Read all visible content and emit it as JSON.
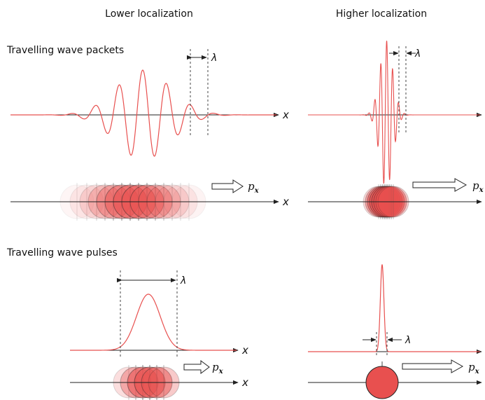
{
  "headers": {
    "left": "Lower localization",
    "right": "Higher localization"
  },
  "rows": {
    "packets": "Travelling wave packets",
    "pulses": "Travelling wave pulses"
  },
  "symbols": {
    "x": "x",
    "lambda": "λ",
    "p": "p",
    "sub_x": "x"
  },
  "colors": {
    "wave": "#e8504f",
    "ball_fill": "#e8504f",
    "axis": "#222222",
    "dashed": "#444444"
  }
}
